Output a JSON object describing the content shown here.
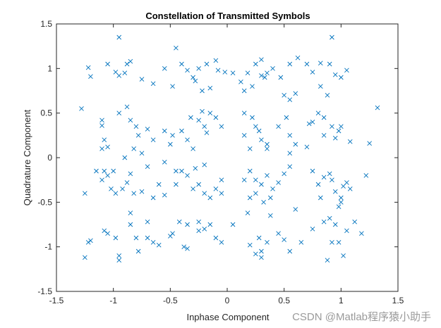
{
  "watermark": "CSDN @Matlab程序猿小助手",
  "colors": {
    "marker": "#0072BD",
    "axis": "#262626",
    "background": "#ffffff"
  },
  "chart_data": {
    "type": "scatter",
    "title": "Constellation of Transmitted Symbols",
    "xlabel": "Inphase Component",
    "ylabel": "Quadrature Component",
    "xlim": [
      -1.5,
      1.5
    ],
    "ylim": [
      -1.5,
      1.5
    ],
    "xticks": [
      -1.5,
      -1,
      -0.5,
      0,
      0.5,
      1,
      1.5
    ],
    "yticks": [
      -1.5,
      -1,
      -0.5,
      0,
      0.5,
      1,
      1.5
    ],
    "xtick_labels": [
      "-1.5",
      "-1",
      "-0.5",
      "0",
      "0.5",
      "1",
      "1.5"
    ],
    "ytick_labels": [
      "-1.5",
      "-1",
      "-0.5",
      "0",
      "0.5",
      "1",
      "1.5"
    ],
    "marker": "x",
    "grid": false,
    "series": [
      {
        "points": [
          [
            -0.95,
            1.35
          ],
          [
            -1.22,
            1.01
          ],
          [
            -1.2,
            0.91
          ],
          [
            -1.05,
            1.05
          ],
          [
            -0.98,
            0.96
          ],
          [
            -0.95,
            0.92
          ],
          [
            -0.88,
            1.05
          ],
          [
            -0.85,
            1.08
          ],
          [
            -0.9,
            0.95
          ],
          [
            -0.75,
            0.88
          ],
          [
            -0.65,
            0.83
          ],
          [
            -0.55,
            1.0
          ],
          [
            -0.45,
            1.23
          ],
          [
            -0.4,
            1.05
          ],
          [
            -0.35,
            0.98
          ],
          [
            -0.3,
            0.9
          ],
          [
            -0.28,
            0.86
          ],
          [
            -0.25,
            1.0
          ],
          [
            -0.18,
            1.05
          ],
          [
            -0.1,
            1.09
          ],
          [
            -0.08,
            0.98
          ],
          [
            -0.02,
            0.96
          ],
          [
            0.05,
            0.95
          ],
          [
            -0.22,
            0.75
          ],
          [
            -0.15,
            0.78
          ],
          [
            -0.48,
            0.8
          ],
          [
            0.25,
            1.05
          ],
          [
            0.3,
            1.1
          ],
          [
            0.33,
            0.9
          ],
          [
            0.35,
            0.95
          ],
          [
            0.4,
            1.0
          ],
          [
            0.47,
            0.9
          ],
          [
            0.55,
            1.05
          ],
          [
            0.62,
            1.12
          ],
          [
            0.7,
            1.05
          ],
          [
            0.75,
            0.96
          ],
          [
            0.82,
            1.06
          ],
          [
            0.9,
            1.05
          ],
          [
            0.95,
            0.93
          ],
          [
            1.05,
            0.98
          ],
          [
            0.18,
            0.95
          ],
          [
            0.12,
            0.85
          ],
          [
            0.15,
            0.75
          ],
          [
            0.22,
            0.8
          ],
          [
            0.3,
            0.92
          ],
          [
            0.5,
            0.7
          ],
          [
            0.55,
            0.65
          ],
          [
            0.6,
            0.72
          ],
          [
            0.82,
            0.8
          ],
          [
            0.88,
            0.7
          ],
          [
            0.92,
            1.35
          ],
          [
            1.0,
            0.9
          ],
          [
            -1.28,
            0.55
          ],
          [
            -1.1,
            0.42
          ],
          [
            -1.1,
            0.36
          ],
          [
            -1.08,
            0.2
          ],
          [
            -1.05,
            0.12
          ],
          [
            -1.1,
            0.1
          ],
          [
            -0.95,
            0.5
          ],
          [
            -0.88,
            0.57
          ],
          [
            -0.85,
            0.42
          ],
          [
            -0.8,
            0.35
          ],
          [
            -0.78,
            0.25
          ],
          [
            -0.7,
            0.32
          ],
          [
            -0.65,
            0.2
          ],
          [
            -0.82,
            0.1
          ],
          [
            -0.75,
            0.05
          ],
          [
            -0.9,
            0.0
          ],
          [
            -0.55,
            0.3
          ],
          [
            -0.5,
            0.15
          ],
          [
            -0.48,
            0.25
          ],
          [
            -0.4,
            0.3
          ],
          [
            -0.35,
            0.2
          ],
          [
            -0.3,
            0.1
          ],
          [
            -0.32,
            0.45
          ],
          [
            -0.25,
            0.42
          ],
          [
            -0.2,
            0.35
          ],
          [
            -0.15,
            0.5
          ],
          [
            -0.1,
            0.45
          ],
          [
            -0.05,
            0.35
          ],
          [
            -0.18,
            0.28
          ],
          [
            -0.22,
            0.52
          ],
          [
            0.15,
            0.5
          ],
          [
            0.22,
            0.45
          ],
          [
            0.25,
            0.35
          ],
          [
            0.28,
            0.3
          ],
          [
            0.3,
            0.2
          ],
          [
            0.35,
            0.15
          ],
          [
            0.2,
            0.1
          ],
          [
            0.15,
            0.25
          ],
          [
            0.45,
            0.35
          ],
          [
            0.52,
            0.45
          ],
          [
            0.55,
            0.25
          ],
          [
            0.6,
            0.15
          ],
          [
            0.7,
            0.12
          ],
          [
            0.75,
            0.4
          ],
          [
            0.8,
            0.5
          ],
          [
            0.85,
            0.45
          ],
          [
            0.92,
            0.35
          ],
          [
            0.98,
            0.3
          ],
          [
            1.0,
            0.35
          ],
          [
            0.95,
            0.22
          ],
          [
            0.85,
            0.25
          ],
          [
            0.72,
            0.38
          ],
          [
            1.32,
            0.56
          ],
          [
            1.25,
            0.16
          ],
          [
            1.08,
            0.18
          ],
          [
            0.55,
            0.05
          ],
          [
            0.35,
            0.1
          ],
          [
            -1.15,
            -0.15
          ],
          [
            -1.1,
            -0.25
          ],
          [
            -1.05,
            -0.2
          ],
          [
            -1.02,
            -0.35
          ],
          [
            -0.98,
            -0.4
          ],
          [
            -0.92,
            -0.35
          ],
          [
            -0.88,
            -0.28
          ],
          [
            -0.85,
            -0.18
          ],
          [
            -0.82,
            -0.4
          ],
          [
            -0.75,
            -0.38
          ],
          [
            -1.25,
            -0.4
          ],
          [
            -1.08,
            -0.15
          ],
          [
            -1.0,
            -0.15
          ],
          [
            -0.65,
            -0.45
          ],
          [
            -0.55,
            -0.42
          ],
          [
            -0.45,
            -0.3
          ],
          [
            -0.4,
            -0.15
          ],
          [
            -0.35,
            -0.2
          ],
          [
            -0.3,
            -0.35
          ],
          [
            -0.25,
            -0.3
          ],
          [
            -0.2,
            -0.4
          ],
          [
            -0.15,
            -0.45
          ],
          [
            -0.1,
            -0.35
          ],
          [
            -0.05,
            -0.25
          ],
          [
            -0.6,
            -0.3
          ],
          [
            -0.7,
            -0.1
          ],
          [
            -0.55,
            -0.05
          ],
          [
            -0.45,
            -0.15
          ],
          [
            -0.28,
            -0.12
          ],
          [
            -0.2,
            -0.08
          ],
          [
            0.2,
            -0.15
          ],
          [
            0.25,
            -0.25
          ],
          [
            0.3,
            -0.3
          ],
          [
            0.35,
            -0.2
          ],
          [
            0.4,
            -0.35
          ],
          [
            0.45,
            -0.28
          ],
          [
            0.5,
            -0.18
          ],
          [
            0.55,
            -0.1
          ],
          [
            0.38,
            -0.45
          ],
          [
            0.32,
            -0.5
          ],
          [
            0.25,
            -0.4
          ],
          [
            0.2,
            -0.45
          ],
          [
            0.15,
            -0.25
          ],
          [
            0.6,
            -0.58
          ],
          [
            0.8,
            -0.3
          ],
          [
            0.85,
            -0.22
          ],
          [
            0.9,
            -0.18
          ],
          [
            0.92,
            -0.25
          ],
          [
            0.95,
            -0.38
          ],
          [
            1.0,
            -0.45
          ],
          [
            1.02,
            -0.32
          ],
          [
            1.05,
            -0.28
          ],
          [
            1.08,
            -0.35
          ],
          [
            0.98,
            -0.55
          ],
          [
            1.0,
            -0.5
          ],
          [
            1.22,
            -0.2
          ],
          [
            0.82,
            -0.45
          ],
          [
            0.75,
            -0.15
          ],
          [
            -0.05,
            -0.4
          ],
          [
            -1.22,
            -0.95
          ],
          [
            -1.2,
            -0.93
          ],
          [
            -1.25,
            -1.12
          ],
          [
            -1.08,
            -0.82
          ],
          [
            -1.05,
            -0.85
          ],
          [
            -0.98,
            -0.9
          ],
          [
            -0.95,
            -1.1
          ],
          [
            -0.95,
            -1.15
          ],
          [
            -0.85,
            -0.75
          ],
          [
            -0.8,
            -0.9
          ],
          [
            -0.78,
            -1.05
          ],
          [
            -0.7,
            -0.9
          ],
          [
            -0.65,
            -0.95
          ],
          [
            -0.5,
            -0.88
          ],
          [
            -0.48,
            -0.85
          ],
          [
            -0.38,
            -1.0
          ],
          [
            -0.35,
            -1.02
          ],
          [
            -0.35,
            -0.75
          ],
          [
            -0.25,
            -0.82
          ],
          [
            -0.2,
            -0.8
          ],
          [
            -0.15,
            -0.75
          ],
          [
            -0.1,
            -0.9
          ],
          [
            -0.05,
            -0.95
          ],
          [
            0.05,
            -0.75
          ],
          [
            0.2,
            -0.98
          ],
          [
            0.25,
            -1.08
          ],
          [
            0.28,
            -0.9
          ],
          [
            0.3,
            -1.05
          ],
          [
            0.35,
            -0.95
          ],
          [
            0.45,
            -0.85
          ],
          [
            0.5,
            -0.92
          ],
          [
            0.55,
            -1.05
          ],
          [
            0.65,
            -0.95
          ],
          [
            0.75,
            -0.8
          ],
          [
            0.85,
            -0.72
          ],
          [
            0.9,
            -0.68
          ],
          [
            0.95,
            -0.75
          ],
          [
            0.98,
            -0.95
          ],
          [
            1.02,
            -1.1
          ],
          [
            1.05,
            -0.82
          ],
          [
            1.12,
            -0.72
          ],
          [
            1.18,
            -0.85
          ],
          [
            0.88,
            -1.15
          ],
          [
            0.92,
            -0.95
          ],
          [
            0.3,
            -1.12
          ],
          [
            -0.25,
            -0.72
          ],
          [
            -0.85,
            -0.62
          ],
          [
            -0.7,
            -0.72
          ],
          [
            0.18,
            -0.62
          ],
          [
            0.38,
            -0.65
          ],
          [
            -0.6,
            -0.98
          ],
          [
            -0.42,
            -0.72
          ]
        ]
      }
    ]
  }
}
